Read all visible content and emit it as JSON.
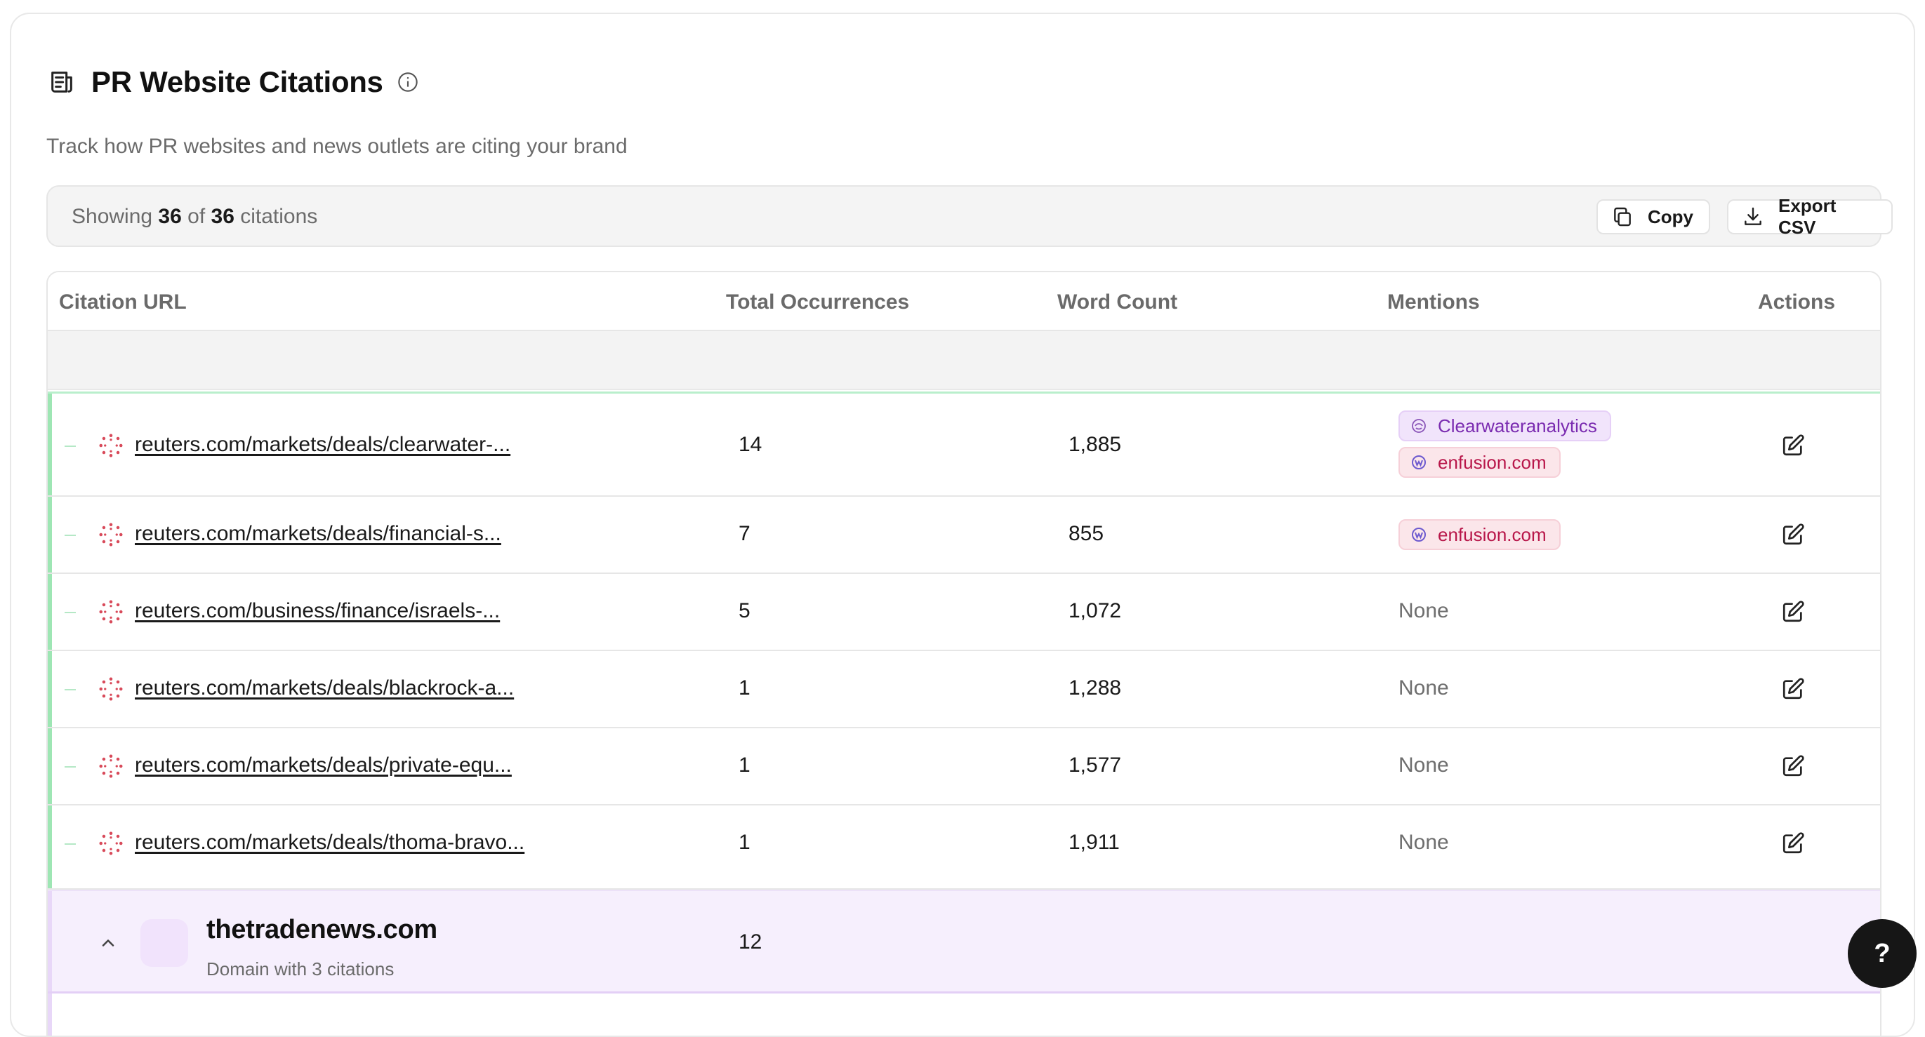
{
  "header": {
    "title": "PR Website Citations",
    "subtitle": "Track how PR websites and news outlets are citing your brand"
  },
  "toolbar": {
    "showing_prefix": "Showing",
    "shown_count": "36",
    "of_word": "of",
    "total_count": "36",
    "suffix": "citations",
    "copy_label": "Copy",
    "export_label": "Export CSV"
  },
  "table": {
    "columns": [
      "Citation URL",
      "Total Occurrences",
      "Word Count",
      "Mentions",
      "Actions"
    ],
    "rows": [
      {
        "url": "reuters.com/markets/deals/clearwater-...",
        "occurrences": "14",
        "words": "1,885"
      },
      {
        "url": "reuters.com/markets/deals/financial-s...",
        "occurrences": "7",
        "words": "855"
      },
      {
        "url": "reuters.com/business/finance/israels-...",
        "occurrences": "5",
        "words": "1,072",
        "none": "None"
      },
      {
        "url": "reuters.com/markets/deals/blackrock-a...",
        "occurrences": "1",
        "words": "1,288",
        "none": "None"
      },
      {
        "url": "reuters.com/markets/deals/private-equ...",
        "occurrences": "1",
        "words": "1,577",
        "none": "None"
      },
      {
        "url": "reuters.com/markets/deals/thoma-bravo...",
        "occurrences": "1",
        "words": "1,911",
        "none": "None"
      }
    ],
    "mentions": {
      "clearwater": "Clearwateranalytics",
      "enfusion": "enfusion.com"
    },
    "group": {
      "domain": "thetradenews.com",
      "subtitle": "Domain with 3 citations",
      "occurrences": "12"
    }
  },
  "help": {
    "label": "?"
  },
  "colors": {
    "accent_green": "#9ee6b4",
    "group_purple": "#f6effd",
    "chip_purple_text": "#7a2bb0",
    "chip_red_text": "#b8174a"
  },
  "icons": [
    "document-icon",
    "info-icon",
    "copy-icon",
    "download-icon",
    "reuters-favicon",
    "globe-icon",
    "enfusion-icon",
    "edit-icon",
    "chevron-up-icon"
  ]
}
